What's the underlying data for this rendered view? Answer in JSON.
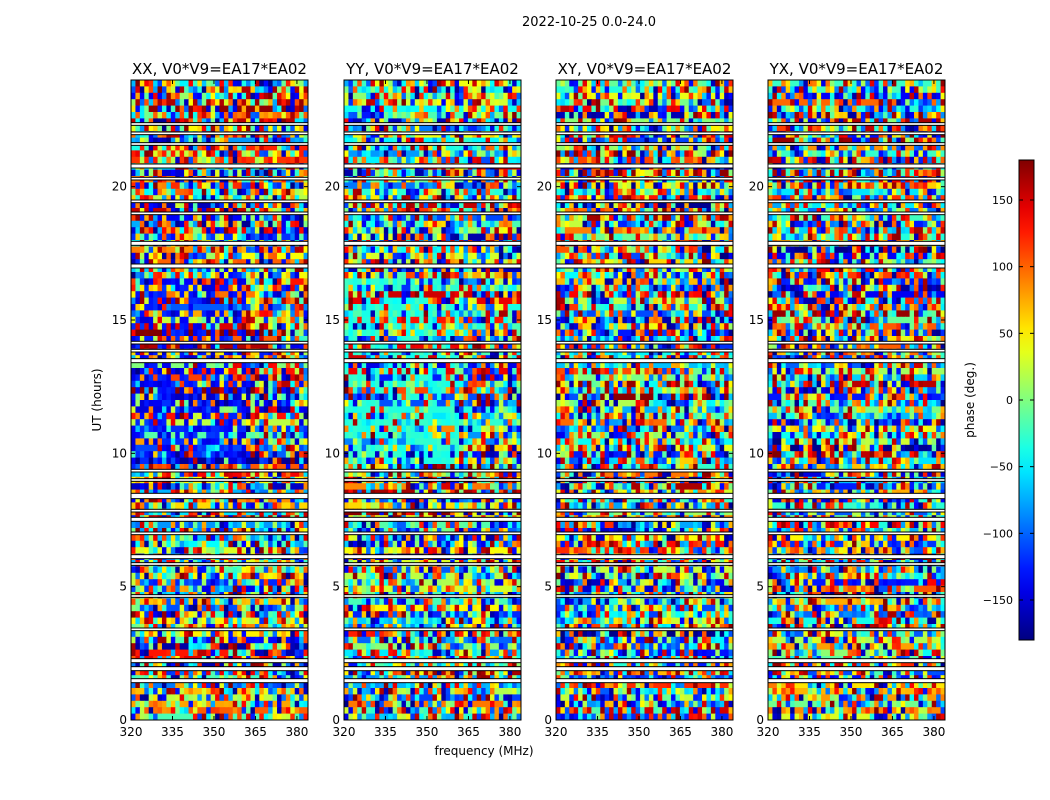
{
  "figure": {
    "suptitle": "2022-10-25 0.0-24.0",
    "xlabel": "frequency (MHz)",
    "ylabel": "UT (hours)",
    "colorbar_label": "phase (deg.)"
  },
  "chart_data": [
    {
      "type": "heatmap",
      "title": "XX, V0*V9=EA17*EA02",
      "x_range": [
        320,
        384
      ],
      "y_range": [
        0,
        24
      ],
      "x_ticks": [
        "320",
        "335",
        "350",
        "365",
        "380"
      ],
      "y_ticks": [
        "0",
        "5",
        "10",
        "15",
        "20"
      ],
      "color_scale": "jet",
      "value_range": [
        -180,
        180
      ]
    },
    {
      "type": "heatmap",
      "title": "YY, V0*V9=EA17*EA02",
      "x_range": [
        320,
        384
      ],
      "y_range": [
        0,
        24
      ],
      "x_ticks": [
        "320",
        "335",
        "350",
        "365",
        "380"
      ],
      "y_ticks": [
        "0",
        "5",
        "10",
        "15",
        "20"
      ],
      "color_scale": "jet",
      "value_range": [
        -180,
        180
      ]
    },
    {
      "type": "heatmap",
      "title": "XY, V0*V9=EA17*EA02",
      "x_range": [
        320,
        384
      ],
      "y_range": [
        0,
        24
      ],
      "x_ticks": [
        "320",
        "335",
        "350",
        "365",
        "380"
      ],
      "y_ticks": [
        "0",
        "5",
        "10",
        "15",
        "20"
      ],
      "color_scale": "jet",
      "value_range": [
        -180,
        180
      ]
    },
    {
      "type": "heatmap",
      "title": "YX, V0*V9=EA17*EA02",
      "x_range": [
        320,
        384
      ],
      "y_range": [
        0,
        24
      ],
      "x_ticks": [
        "320",
        "335",
        "350",
        "365",
        "380"
      ],
      "y_ticks": [
        "0",
        "5",
        "10",
        "15",
        "20"
      ],
      "color_scale": "jet",
      "value_range": [
        -180,
        180
      ]
    }
  ],
  "colorbar": {
    "ticks": [
      -150,
      -100,
      -50,
      0,
      50,
      100,
      150
    ],
    "tick_labels": [
      "−150",
      "−100",
      "−50",
      "0",
      "50",
      "100",
      "150"
    ],
    "range": [
      -180,
      180
    ]
  },
  "gap_bands_hours": [
    [
      1.4,
      1.55
    ],
    [
      1.85,
      2.0
    ],
    [
      2.15,
      2.3
    ],
    [
      3.35,
      3.45
    ],
    [
      4.6,
      4.7
    ],
    [
      5.8,
      5.9
    ],
    [
      6.05,
      6.2
    ],
    [
      6.95,
      7.05
    ],
    [
      7.45,
      7.6
    ],
    [
      7.8,
      7.9
    ],
    [
      8.3,
      8.5
    ],
    [
      8.95,
      9.05
    ],
    [
      9.3,
      9.4
    ],
    [
      13.4,
      13.55
    ],
    [
      13.8,
      13.9
    ],
    [
      14.1,
      14.2
    ],
    [
      16.95,
      17.1
    ],
    [
      17.8,
      17.95
    ],
    [
      18.95,
      19.05
    ],
    [
      19.4,
      19.5
    ],
    [
      20.25,
      20.35
    ],
    [
      20.7,
      20.85
    ],
    [
      21.55,
      21.65
    ],
    [
      21.95,
      22.05
    ],
    [
      22.3,
      22.4
    ]
  ]
}
